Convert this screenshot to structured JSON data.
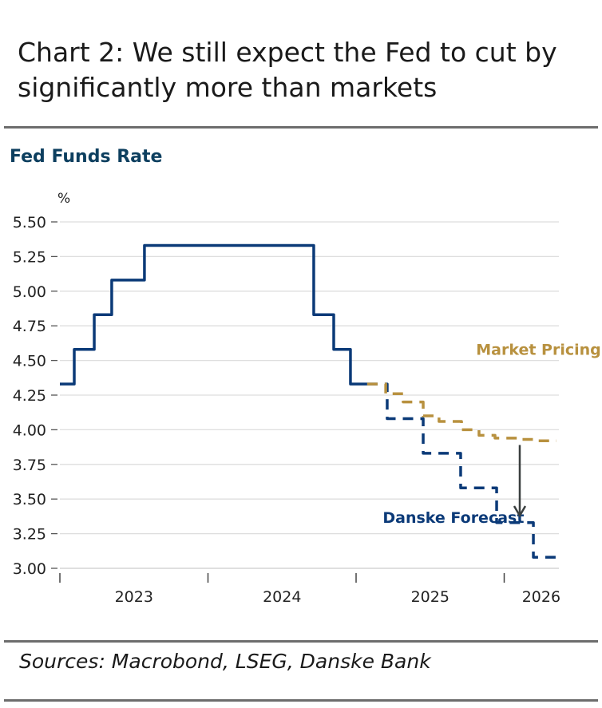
{
  "title": "Chart 2: We still expect the Fed to cut by significantly more than markets",
  "footer": "Sources: Macrobond, LSEG, Danske Bank",
  "chart_data": {
    "type": "line",
    "title": "Fed Funds Rate",
    "ylabel": "%",
    "ylim": [
      3.0,
      5.5
    ],
    "yticks": [
      5.5,
      5.25,
      5.0,
      4.75,
      4.5,
      4.25,
      4.0,
      3.75,
      3.5,
      3.25,
      3.0
    ],
    "ytick_labels": [
      "5.50",
      "5.25",
      "5.00",
      "4.75",
      "4.50",
      "4.25",
      "4.00",
      "3.75",
      "3.50",
      "3.25",
      "3.00"
    ],
    "xlim": [
      2023.0,
      2026.35
    ],
    "xticks": [
      2023,
      2024,
      2025,
      2026
    ],
    "xtick_labels": [
      {
        "label": "2023",
        "at": 2023.5
      },
      {
        "label": "2024",
        "at": 2024.5
      },
      {
        "label": "2025",
        "at": 2025.5
      },
      {
        "label": "2026",
        "at": 2026.25
      }
    ],
    "grid": true,
    "series": [
      {
        "name": "Fed Funds Rate",
        "style": "solid",
        "color": "#0b3a78",
        "steps": [
          [
            2023.0,
            4.33
          ],
          [
            2023.097,
            4.58
          ],
          [
            2023.232,
            4.83
          ],
          [
            2023.35,
            5.08
          ],
          [
            2023.571,
            5.33
          ],
          [
            2024.714,
            4.83
          ],
          [
            2024.849,
            4.58
          ],
          [
            2024.962,
            4.33
          ],
          [
            2025.075,
            4.33
          ]
        ]
      },
      {
        "name": "Danske Forecast",
        "style": "dashed",
        "color": "#0b3a78",
        "steps": [
          [
            2025.075,
            4.33
          ],
          [
            2025.21,
            4.08
          ],
          [
            2025.453,
            3.83
          ],
          [
            2025.706,
            3.58
          ],
          [
            2025.949,
            3.33
          ],
          [
            2026.197,
            3.08
          ],
          [
            2026.353,
            3.08
          ]
        ]
      },
      {
        "name": "Market Pricing",
        "style": "dashed",
        "color": "#b8913f",
        "steps": [
          [
            2025.075,
            4.33
          ],
          [
            2025.2,
            4.26
          ],
          [
            2025.318,
            4.2
          ],
          [
            2025.453,
            4.1
          ],
          [
            2025.56,
            4.06
          ],
          [
            2025.712,
            4.0
          ],
          [
            2025.83,
            3.96
          ],
          [
            2025.938,
            3.94
          ],
          [
            2026.1,
            3.93
          ],
          [
            2026.207,
            3.92
          ],
          [
            2026.353,
            3.92
          ]
        ]
      }
    ],
    "annotations": [
      {
        "text": "Market Pricing",
        "color": "#b8913f",
        "x": 2025.81,
        "y": 4.58
      },
      {
        "text": "Danske Forecast",
        "color": "#0b3a78",
        "x": 2025.18,
        "y": 3.37
      }
    ],
    "arrow": {
      "x": 2026.105,
      "from": 3.89,
      "to": 3.38,
      "color": "#3a3f3f"
    }
  }
}
